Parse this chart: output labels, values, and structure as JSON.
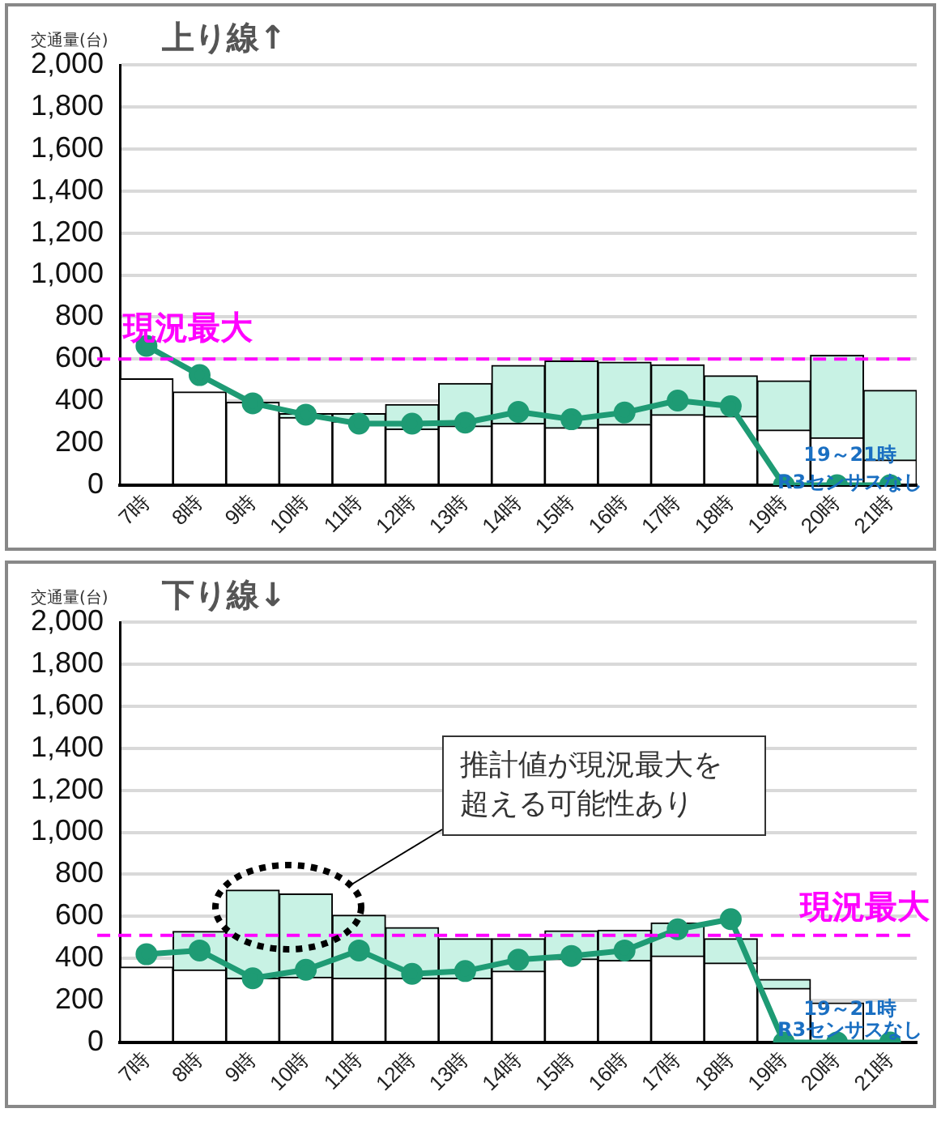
{
  "chart_data": [
    {
      "type": "bar",
      "title": "上り線↑",
      "ylabel": "交通量(台)",
      "stacked": true,
      "grid": "y",
      "legend": false,
      "marker": "circle",
      "categories": [
        "7時",
        "8時",
        "9時",
        "10時",
        "11時",
        "12時",
        "13時",
        "14時",
        "15時",
        "16時",
        "17時",
        "18時",
        "19時",
        "20時",
        "21時"
      ],
      "ylim": [
        0,
        2000
      ],
      "yticks": [
        0,
        200,
        400,
        600,
        800,
        {
          "value": 1000,
          "label": "1,000"
        },
        {
          "value": 1200,
          "label": "1,200"
        },
        {
          "value": 1400,
          "label": "1,400"
        },
        {
          "value": 1600,
          "label": "1,600"
        },
        {
          "value": 1800,
          "label": "1,800"
        },
        {
          "value": 2000,
          "label": "2,000"
        }
      ],
      "series": [
        {
          "color": "#ffffff",
          "values": [
            506,
            444,
            395,
            322,
            303,
            268,
            282,
            295,
            274,
            290,
            336,
            328,
            263,
            226,
            120
          ]
        },
        {
          "color": "#c8f2e4",
          "values": [
            0,
            0,
            0,
            19,
            38,
            116,
            202,
            275,
            317,
            295,
            237,
            193,
            234,
            392,
            332
          ]
        },
        {
          "type": "line",
          "color": "#1e9b74",
          "values": [
            663,
            524,
            390,
            336,
            293,
            293,
            298,
            349,
            314,
            346,
            403,
            376,
            0,
            0,
            0
          ]
        }
      ],
      "ref_lines": [
        {
          "axis": "y",
          "value": 600,
          "label": "現況最大",
          "color": "#ff00ff",
          "line_style": "dashed"
        }
      ],
      "annotations": [
        {
          "text": "19～21時",
          "x": "20時",
          "y": 140
        },
        {
          "text": "R3センサスなし",
          "x": "20時",
          "y": 10
        }
      ]
    },
    {
      "type": "bar",
      "title": "下り線↓",
      "ylabel": "交通量(台)",
      "stacked": true,
      "grid": "y",
      "legend": false,
      "marker": "circle",
      "categories": [
        "7時",
        "8時",
        "9時",
        "10時",
        "11時",
        "12時",
        "13時",
        "14時",
        "15時",
        "16時",
        "17時",
        "18時",
        "19時",
        "20時",
        "21時"
      ],
      "ylim": [
        0,
        2000
      ],
      "yticks": [
        0,
        200,
        400,
        600,
        800,
        {
          "value": 1000,
          "label": "1,000"
        },
        {
          "value": 1200,
          "label": "1,200"
        },
        {
          "value": 1400,
          "label": "1,400"
        },
        {
          "value": 1600,
          "label": "1,600"
        },
        {
          "value": 1800,
          "label": "1,800"
        },
        {
          "value": 2000,
          "label": "2,000"
        }
      ],
      "series": [
        {
          "color": "#ffffff",
          "values": [
            359,
            346,
            306,
            311,
            306,
            306,
            306,
            340,
            398,
            391,
            412,
            378,
            258,
            189,
            null
          ]
        },
        {
          "color": "#c8f2e4",
          "values": [
            0,
            183,
            419,
            396,
            300,
            241,
            188,
            154,
            133,
            143,
            157,
            116,
            42,
            0,
            null
          ]
        },
        {
          "type": "line",
          "color": "#1e9b74",
          "values": [
            420,
            438,
            306,
            346,
            438,
            327,
            340,
            394,
            412,
            438,
            539,
            587,
            0,
            0,
            0
          ]
        }
      ],
      "ref_lines": [
        {
          "axis": "y",
          "value": 510,
          "label": "現況最大",
          "color": "#ff00ff",
          "line_style": "dashed"
        }
      ],
      "annotations": [
        "推計値が現況最大を超える可能性あり",
        {
          "text": "19～21時",
          "x": "20時",
          "y": 155
        },
        {
          "text": "R3センサスなし",
          "x": "20時",
          "y": 55
        }
      ]
    }
  ]
}
